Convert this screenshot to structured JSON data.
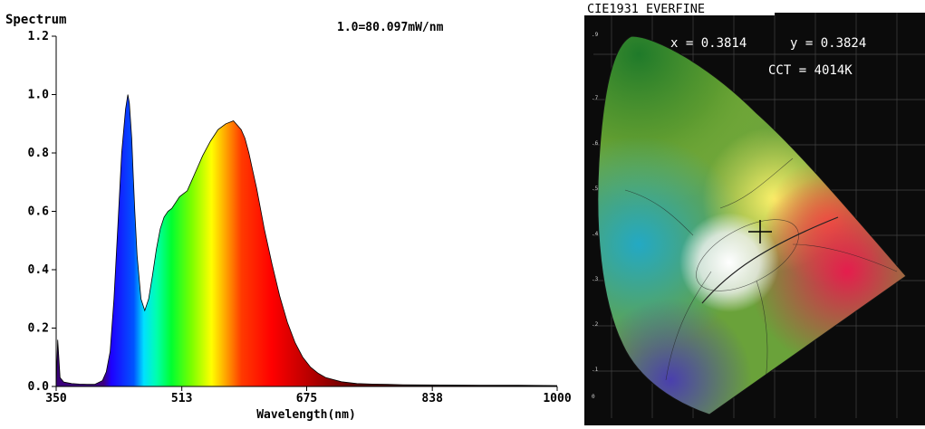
{
  "chart_data": [
    {
      "type": "area",
      "title": "Spectrum",
      "annotation": "1.0=80.097mW/nm",
      "xlabel": "Wavelength(nm)",
      "ylabel": "",
      "xlim": [
        350,
        1000
      ],
      "ylim": [
        0,
        1.2
      ],
      "x_ticks": [
        "350",
        "513",
        "675",
        "838",
        "1000"
      ],
      "y_ticks": [
        "0.0",
        "0.2",
        "0.4",
        "0.6",
        "0.8",
        "1.0",
        "1.2"
      ],
      "grid": false,
      "series": [
        {
          "x": [
            350,
            352,
            355,
            360,
            370,
            380,
            390,
            400,
            410,
            415,
            420,
            425,
            430,
            435,
            440,
            443,
            445,
            448,
            450,
            452,
            455,
            460,
            465,
            470,
            475,
            480,
            485,
            490,
            495,
            500,
            505,
            510,
            515,
            520,
            525,
            530,
            535,
            540,
            550,
            560,
            570,
            580,
            590,
            595,
            600,
            605,
            610,
            620,
            630,
            640,
            650,
            660,
            670,
            680,
            690,
            700,
            720,
            740,
            760,
            780,
            800,
            850,
            900,
            950,
            1000
          ],
          "y": [
            0.0,
            0.16,
            0.03,
            0.015,
            0.01,
            0.008,
            0.007,
            0.007,
            0.02,
            0.05,
            0.12,
            0.3,
            0.55,
            0.8,
            0.95,
            1.0,
            0.97,
            0.85,
            0.72,
            0.6,
            0.45,
            0.3,
            0.26,
            0.3,
            0.38,
            0.47,
            0.54,
            0.58,
            0.6,
            0.61,
            0.63,
            0.65,
            0.66,
            0.67,
            0.7,
            0.73,
            0.76,
            0.79,
            0.84,
            0.88,
            0.9,
            0.91,
            0.88,
            0.85,
            0.8,
            0.74,
            0.68,
            0.54,
            0.42,
            0.31,
            0.22,
            0.15,
            0.1,
            0.066,
            0.045,
            0.03,
            0.016,
            0.01,
            0.008,
            0.007,
            0.006,
            0.005,
            0.004,
            0.004,
            0.003
          ]
        }
      ]
    },
    {
      "type": "scatter",
      "title": "CIE1931 EVERFINE",
      "point": {
        "x": 0.3814,
        "y": 0.3824
      },
      "x_text": "x = 0.3814",
      "y_text": "y = 0.3824",
      "cct_text": "CCT = 4014K",
      "xlim": [
        0,
        0.8
      ],
      "ylim": [
        0,
        0.9
      ]
    }
  ]
}
